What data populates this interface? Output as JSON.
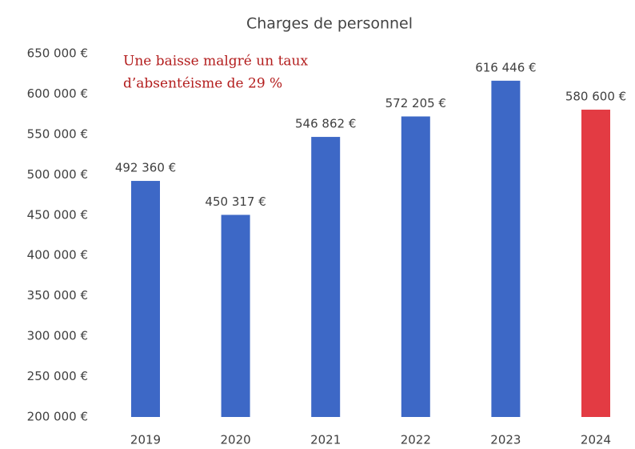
{
  "chart_data": {
    "type": "bar",
    "title": "Charges de personnel",
    "annotation": [
      "Une baisse malgré un taux",
      "d’absentéisme de 29 %"
    ],
    "categories": [
      "2019",
      "2020",
      "2021",
      "2022",
      "2023",
      "2024"
    ],
    "values": [
      492360,
      450317,
      546862,
      572205,
      616446,
      580600
    ],
    "value_labels": [
      "492 360 €",
      "450 317 €",
      "546 862 €",
      "572 205 €",
      "616 446 €",
      "580 600 €"
    ],
    "colors": [
      "#3d68c6",
      "#3d68c6",
      "#3d68c6",
      "#3d68c6",
      "#3d68c6",
      "#e33b43"
    ],
    "ylim": [
      200000,
      650000
    ],
    "yticks": [
      {
        "value": 200000,
        "label": "200 000 €"
      },
      {
        "value": 250000,
        "label": "250 000 €"
      },
      {
        "value": 300000,
        "label": "300 000 €"
      },
      {
        "value": 350000,
        "label": "350 000 €"
      },
      {
        "value": 400000,
        "label": "400 000 €"
      },
      {
        "value": 450000,
        "label": "450 000 €"
      },
      {
        "value": 500000,
        "label": "500 000 €"
      },
      {
        "value": 550000,
        "label": "550 000 €"
      },
      {
        "value": 600000,
        "label": "600 000 €"
      },
      {
        "value": 650000,
        "label": "650 000 €"
      }
    ],
    "grid": false
  }
}
